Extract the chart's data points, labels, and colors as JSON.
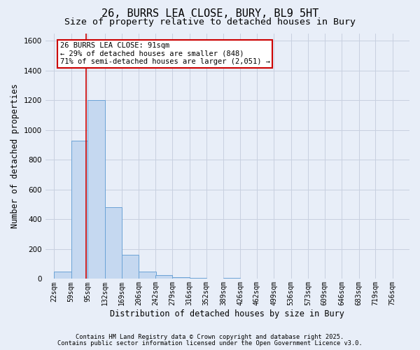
{
  "title1": "26, BURRS LEA CLOSE, BURY, BL9 5HT",
  "title2": "Size of property relative to detached houses in Bury",
  "xlabel": "Distribution of detached houses by size in Bury",
  "ylabel": "Number of detached properties",
  "categories": [
    "22sqm",
    "59sqm",
    "95sqm",
    "132sqm",
    "169sqm",
    "206sqm",
    "242sqm",
    "279sqm",
    "316sqm",
    "352sqm",
    "389sqm",
    "426sqm",
    "462sqm",
    "499sqm",
    "536sqm",
    "573sqm",
    "609sqm",
    "646sqm",
    "683sqm",
    "719sqm",
    "756sqm"
  ],
  "bin_edges": [
    22,
    59,
    95,
    132,
    169,
    206,
    242,
    279,
    316,
    352,
    389,
    426,
    462,
    499,
    536,
    573,
    609,
    646,
    683,
    719,
    756
  ],
  "values": [
    50,
    930,
    1200,
    480,
    160,
    50,
    25,
    10,
    5,
    3,
    5,
    0,
    0,
    3,
    0,
    0,
    0,
    0,
    0,
    0,
    0
  ],
  "bar_color": "#c5d8f0",
  "bar_edge_color": "#6ba3d6",
  "property_x": 91,
  "annotation_text": "26 BURRS LEA CLOSE: 91sqm\n← 29% of detached houses are smaller (848)\n71% of semi-detached houses are larger (2,051) →",
  "annotation_box_color": "white",
  "annotation_box_edge_color": "#cc0000",
  "vline_color": "#cc0000",
  "ylim": [
    0,
    1650
  ],
  "xlim_left": 3,
  "xlim_right": 793,
  "background_color": "#e8eef8",
  "plot_bg_color": "#e8eef8",
  "grid_color": "#c8d0e0",
  "footer1": "Contains HM Land Registry data © Crown copyright and database right 2025.",
  "footer2": "Contains public sector information licensed under the Open Government Licence v3.0.",
  "title_fontsize": 11,
  "subtitle_fontsize": 9.5,
  "tick_fontsize": 7,
  "label_fontsize": 8.5,
  "annotation_fontsize": 7.5
}
